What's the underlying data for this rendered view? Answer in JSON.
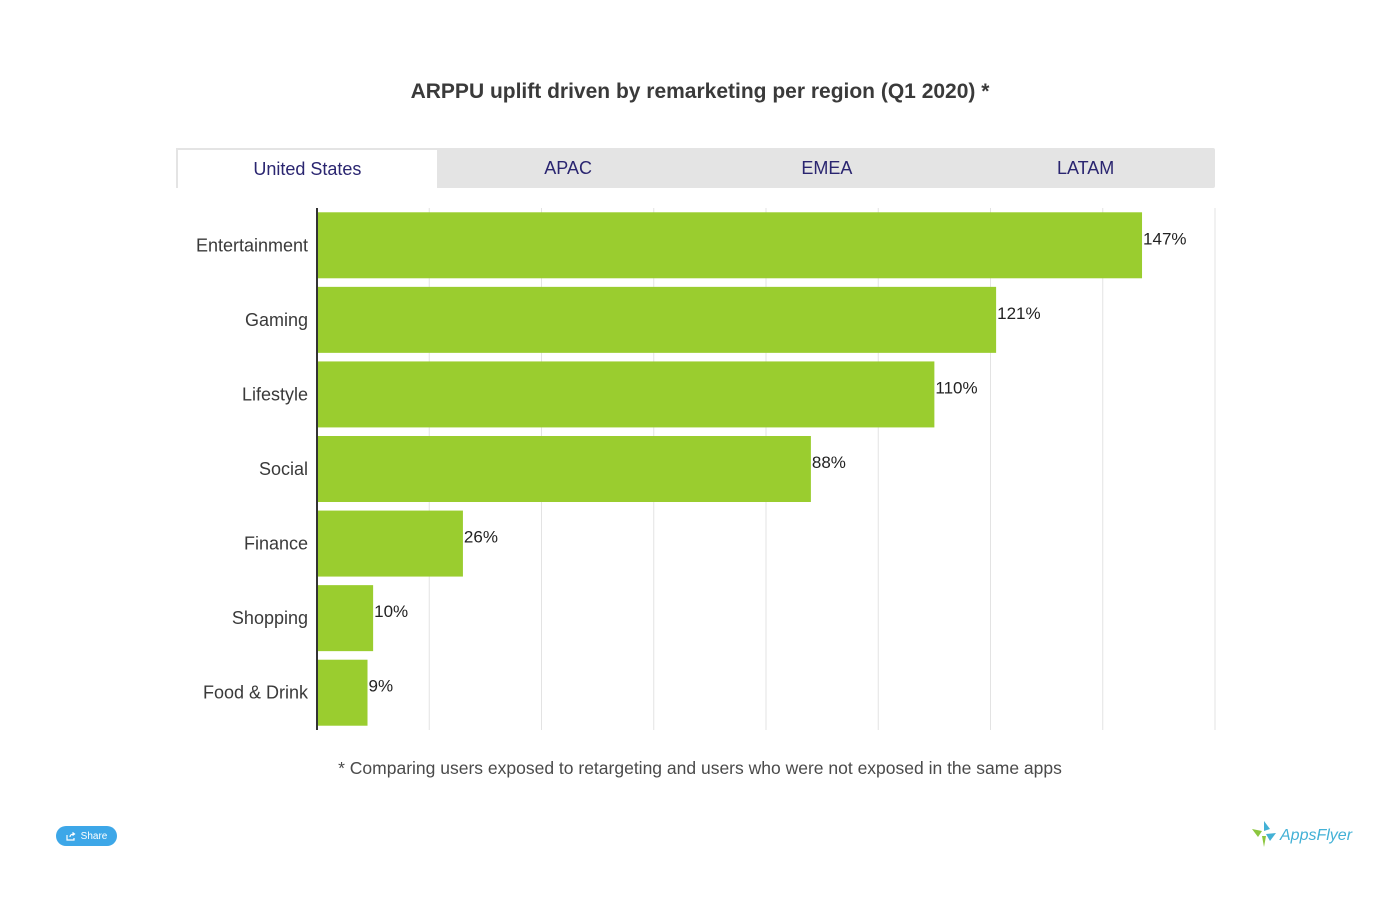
{
  "title": "ARPPU uplift driven by remarketing per region (Q1 2020) *",
  "tabs": [
    {
      "label": "United States",
      "active": true
    },
    {
      "label": "APAC",
      "active": false
    },
    {
      "label": "EMEA",
      "active": false
    },
    {
      "label": "LATAM",
      "active": false
    }
  ],
  "chart_data": {
    "type": "bar",
    "orientation": "horizontal",
    "categories": [
      "Entertainment",
      "Gaming",
      "Lifestyle",
      "Social",
      "Finance",
      "Shopping",
      "Food & Drink"
    ],
    "values": [
      147,
      121,
      110,
      88,
      26,
      10,
      9
    ],
    "data_labels": [
      "147%",
      "121%",
      "110%",
      "88%",
      "26%",
      "10%",
      "9%"
    ],
    "xlim": [
      0,
      160
    ],
    "grid": true,
    "bar_color": "#9acd2f"
  },
  "footnote": "* Comparing users exposed to retargeting and users who were not exposed in the same apps",
  "share": {
    "label": "Share",
    "icon": "share-icon"
  },
  "logo": {
    "text": "AppsFlyer",
    "icon": "appsflyer-logo-icon"
  },
  "colors": {
    "accent": "#3da7e8",
    "bar": "#9acd2f",
    "tab_text": "#2a2570",
    "tab_bg": "#e4e4e4"
  }
}
